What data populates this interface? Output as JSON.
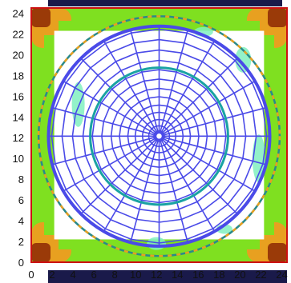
{
  "chart_data": {
    "type": "heatmap",
    "title": "",
    "xlabel": "",
    "ylabel": "",
    "xlim": [
      0,
      24.5
    ],
    "ylim": [
      0,
      24.5
    ],
    "x_ticks": [
      "0",
      "2",
      "4",
      "6",
      "8",
      "10",
      "12",
      "14",
      "16",
      "18",
      "20",
      "22",
      "24"
    ],
    "y_ticks": [
      "0",
      "2",
      "4",
      "6",
      "8",
      "10",
      "12",
      "14",
      "16",
      "18",
      "20",
      "22",
      "24"
    ],
    "field": {
      "outer_extent": [
        0,
        24.5
      ],
      "inner_square": [
        2.2,
        22.3
      ],
      "levels": [
        {
          "name": "high",
          "color": "#9a3a08"
        },
        {
          "name": "upper",
          "color": "#e8a020"
        },
        {
          "name": "mid",
          "color": "#7fe020"
        },
        {
          "name": "low",
          "color": "#ffffff"
        }
      ]
    },
    "mesh": {
      "center": [
        12.25,
        12.15
      ],
      "outer_radius": 10.6,
      "inner_circle_radius": 6.6,
      "dashed_circle_radius": 11.55,
      "radial_lines": 24,
      "rings": [
        0.5,
        1.0,
        1.6,
        2.3,
        3.0,
        3.8,
        4.6,
        5.5,
        6.4,
        7.3,
        8.3,
        9.3,
        10.3
      ],
      "mesh_color": "#4a4ae8",
      "inner_circle_color": "#1aa3a3",
      "dashed_colors": [
        "#2a8a8a",
        "#e8a020"
      ]
    }
  },
  "colors": {
    "frame": "#cc1111",
    "top_band": "#1a1a4a",
    "bottom_band": "#1a1a4a",
    "cyan_patch": "#80f0c0"
  }
}
